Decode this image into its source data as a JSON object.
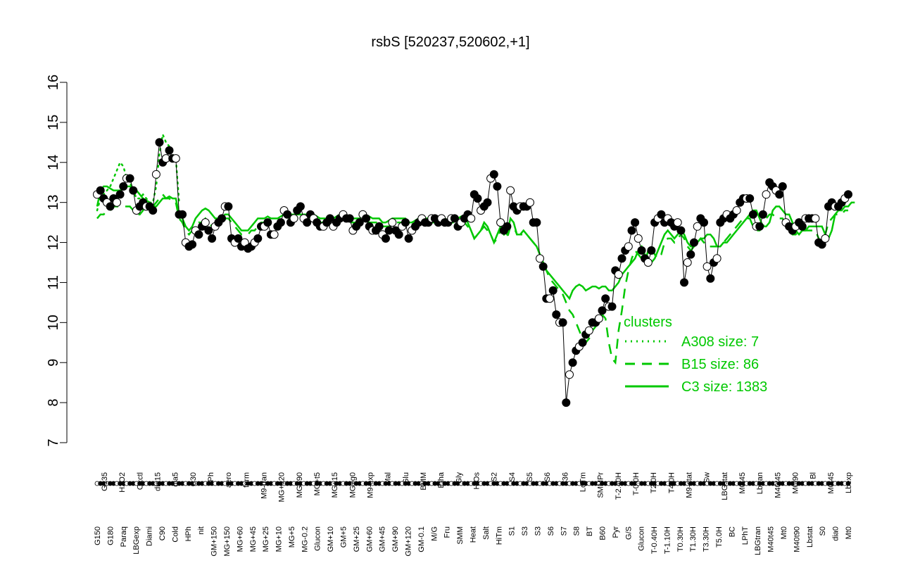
{
  "chart_data": {
    "type": "line",
    "title": "rsbS [520237,520602,+1]",
    "xlabel": "",
    "ylabel": "",
    "ylim": [
      7,
      16
    ],
    "yticks": [
      7,
      8,
      9,
      10,
      11,
      12,
      13,
      14,
      15,
      16
    ],
    "grid": false,
    "legend": {
      "title": "clusters",
      "placement": "right",
      "entries": [
        {
          "label": "A308 size: 7",
          "style": "dotted",
          "color": "#00c800"
        },
        {
          "label": "B15 size: 86",
          "style": "dashed",
          "color": "#00c800"
        },
        {
          "label": "C3 size: 1383",
          "style": "solid",
          "color": "#00c800"
        }
      ]
    },
    "x_labels_lower": [
      "G150",
      "G180",
      "Paraq",
      "LBGexp",
      "Diami",
      "C90",
      "Cold",
      "HPh",
      "nit",
      "GM+150",
      "MG+150",
      "MG+60",
      "MG+45",
      "MG+25",
      "MG+10",
      "MG+5",
      "MG-0.2",
      "Glucon",
      "GM+10",
      "GM+5",
      "GM+25",
      "GM+60",
      "GM+45",
      "GM+90",
      "GM+120",
      "GM-0.1",
      "M/G",
      "Fru",
      "SMM",
      "Heat",
      "Salt",
      "HiTm",
      "S1",
      "S3",
      "S3",
      "S6",
      "S7",
      "S8",
      "BT",
      "B60",
      "Pyr",
      "G/S",
      "Glucon",
      "T-0.40H",
      "T-1.10H",
      "T0.30H",
      "T1.30H",
      "T3.30H",
      "T5.0H",
      "BC",
      "LPhT",
      "LBGtran",
      "M40t45",
      "Mt0",
      "M40t90",
      "Lbstat",
      "S0",
      "dia0",
      "Mt0"
    ],
    "x_labels_upper": [
      "G135",
      "H2O2",
      "Oxctl",
      "dia15",
      "dia5",
      "C30",
      "LPh",
      "aero",
      "ferm",
      "M9-tran",
      "MG+120",
      "MG+90",
      "MG+t5",
      "MG+15",
      "MG+g0",
      "M9-exp",
      "Mal",
      "Glu",
      "BMM",
      "Etha",
      "Gly",
      "HiOs",
      "S2",
      "S4",
      "S5",
      "S6",
      "B36",
      "LoTm",
      "SMMPr",
      "T-2.40H",
      "T-0.0H",
      "T2.0H",
      "T4.0H",
      "M9-stat",
      "Sw",
      "LBGstat",
      "M0t45",
      "Lbtran",
      "M40t45",
      "M0t90",
      "Bl",
      "M0t45",
      "Lbexp"
    ],
    "series": [
      {
        "values": [
          13.2,
          13.3,
          13.1,
          13.0,
          12.9,
          13.1,
          13.0,
          13.2,
          13.4,
          13.6,
          13.6,
          13.3,
          12.8,
          12.9,
          13.0,
          12.9,
          12.9,
          12.8,
          13.7,
          14.5,
          14.0,
          14.1,
          14.3,
          14.1,
          14.1,
          12.7,
          12.7,
          12.0,
          11.9,
          11.95,
          12.3,
          12.2,
          12.4,
          12.5,
          12.3,
          12.1,
          12.4,
          12.5,
          12.6,
          12.9,
          12.9,
          12.1,
          12.0,
          12.1,
          11.9,
          12.0,
          11.85,
          11.9,
          12.0,
          12.1,
          12.4,
          12.4,
          12.5,
          12.2,
          12.2,
          12.4,
          12.5,
          12.8,
          12.7,
          12.5,
          12.6,
          12.8,
          12.9,
          12.6,
          12.5,
          12.7,
          12.6,
          12.5,
          12.4,
          12.4,
          12.5,
          12.6,
          12.4,
          12.5,
          12.6,
          12.7,
          12.6,
          12.6,
          12.3,
          12.4,
          12.5,
          12.7,
          12.6,
          12.4,
          12.3,
          12.3,
          12.4,
          12.2,
          12.1,
          12.3,
          12.5,
          12.3,
          12.2,
          12.4,
          12.5,
          12.1,
          12.3,
          12.4,
          12.5,
          12.6,
          12.5,
          12.5,
          12.6,
          12.6,
          12.5,
          12.6,
          12.5,
          12.5,
          12.6,
          12.6,
          12.4,
          12.5,
          12.6,
          12.7,
          12.6,
          13.2,
          13.1,
          12.8,
          12.9,
          13.0,
          13.6,
          13.7,
          13.4,
          12.5,
          12.3,
          12.4,
          13.3,
          12.9,
          12.8,
          12.9,
          12.9,
          12.9,
          13.0,
          12.5,
          12.5,
          11.6,
          11.4,
          10.6,
          10.6,
          10.8,
          10.2,
          10.0,
          10.0,
          8.0,
          8.7,
          9.0,
          9.3,
          9.4,
          9.5,
          9.7,
          9.8,
          10.0,
          10.0,
          10.1,
          10.3,
          10.6,
          10.4,
          10.4,
          11.3,
          11.2,
          11.6,
          11.8,
          11.9,
          12.3,
          12.5,
          12.1,
          11.8,
          11.6,
          11.5,
          11.8,
          12.5,
          12.6,
          12.7,
          12.5,
          12.6,
          12.5,
          12.4,
          12.5,
          12.3,
          11.0,
          11.5,
          11.7,
          12.0,
          12.4,
          12.6,
          12.5,
          11.4,
          11.1,
          11.5,
          11.6,
          12.5,
          12.6,
          12.7,
          12.6,
          12.7,
          12.8,
          13.0,
          13.1,
          13.1,
          13.1,
          12.7,
          12.4,
          12.4,
          12.7,
          13.2,
          13.5,
          13.4,
          13.3,
          13.2,
          13.4,
          12.5,
          12.4,
          12.3,
          12.4,
          12.5,
          12.4,
          12.6,
          12.6,
          12.6,
          12.6,
          12.0,
          11.95,
          12.1,
          12.9,
          13.0,
          12.9,
          12.9,
          13.0,
          13.1,
          13.2
        ]
      }
    ],
    "cluster_curves": [
      {
        "name": "C3 size: 1383",
        "style": "solid",
        "values": [
          12.9,
          13.3,
          13.4,
          13.4,
          13.35,
          13.3,
          13.3,
          13.3,
          13.35,
          13.4,
          13.4,
          13.35,
          13.3,
          13.2,
          13.1,
          13.05,
          13.0,
          12.9,
          12.9,
          13.0,
          13.1,
          13.1,
          13.15,
          13.1,
          13.1,
          12.7,
          12.6,
          12.4,
          12.3,
          12.4,
          12.6,
          12.7,
          12.8,
          12.85,
          12.8,
          12.7,
          12.6,
          12.6,
          12.6,
          12.7,
          12.7,
          12.6,
          12.5,
          12.4,
          12.3,
          12.3,
          12.3,
          12.4,
          12.5,
          12.6,
          12.6,
          12.6,
          12.65,
          12.6,
          12.6,
          12.6,
          12.65,
          12.7,
          12.7,
          12.7,
          12.7,
          12.7,
          12.7,
          12.7,
          12.7,
          12.7,
          12.7,
          12.65,
          12.6,
          12.6,
          12.6,
          12.6,
          12.6,
          12.65,
          12.7,
          12.7,
          12.7,
          12.6,
          12.6,
          12.6,
          12.6,
          12.65,
          12.65,
          12.65,
          12.6,
          12.6,
          12.6,
          12.5,
          12.5,
          12.55,
          12.6,
          12.6,
          12.6,
          12.6,
          12.6,
          12.5,
          12.5,
          12.55,
          12.6,
          12.6,
          12.6,
          12.6,
          12.6,
          12.65,
          12.6,
          12.6,
          12.6,
          12.55,
          12.6,
          12.6,
          12.6,
          12.65,
          12.6,
          12.5,
          12.3,
          12.1,
          12.2,
          12.3,
          12.5,
          12.4,
          12.2,
          12.0,
          12.2,
          12.4,
          12.3,
          12.2,
          12.6,
          12.5,
          12.2,
          12.2,
          12.3,
          12.2,
          12.1,
          12.0,
          11.9,
          11.7,
          11.5,
          11.3,
          11.2,
          11.1,
          11.0,
          10.9,
          10.8,
          10.7,
          10.6,
          10.8,
          10.9,
          10.95,
          10.9,
          10.8,
          10.85,
          10.9,
          10.9,
          10.85,
          10.9,
          10.9,
          10.8,
          10.8,
          10.9,
          11.0,
          11.2,
          11.3,
          11.4,
          11.5,
          11.6,
          11.8,
          11.9,
          11.7,
          11.5,
          11.5,
          11.6,
          11.8,
          12.0,
          12.2,
          12.3,
          12.2,
          12.1,
          12.2,
          12.3,
          12.2,
          12.0,
          11.9,
          11.9,
          12.0,
          12.1,
          12.1,
          12.2,
          12.2,
          12.1,
          11.9,
          11.9,
          12.0,
          12.0,
          12.1,
          12.2,
          12.3,
          12.4,
          12.5,
          12.6,
          12.7,
          12.8,
          12.8,
          12.6,
          12.4,
          12.4,
          12.5,
          12.8,
          12.9,
          12.9,
          12.8,
          12.7,
          12.7,
          12.5,
          12.3,
          12.2,
          12.3,
          12.3,
          12.4,
          12.4,
          12.4,
          12.4,
          12.4,
          12.2,
          12.1,
          12.3,
          12.7,
          12.8,
          12.8,
          12.9,
          12.9,
          13.0,
          13.0
        ]
      },
      {
        "name": "B15 size: 86",
        "style": "dashed",
        "values": [
          12.6,
          12.7,
          12.7,
          12.8,
          12.8,
          12.9,
          12.9,
          12.9,
          12.9,
          12.9,
          12.9,
          12.8,
          12.7,
          12.7,
          12.8,
          12.9,
          12.9,
          12.9,
          13.0,
          13.1,
          13.2,
          13.1,
          13.1,
          13.0,
          13.0,
          12.6,
          12.5,
          12.3,
          12.2,
          12.3,
          12.4,
          12.5,
          12.5,
          12.6,
          12.5,
          12.4,
          12.4,
          12.4,
          12.5,
          12.6,
          12.6,
          12.5,
          12.4,
          12.3,
          12.2,
          12.2,
          12.2,
          12.3,
          12.3,
          12.4,
          12.5,
          12.5,
          12.5,
          12.4,
          12.4,
          12.5,
          12.5,
          12.6,
          12.6,
          12.6,
          12.6,
          12.6,
          12.6,
          12.6,
          12.6,
          12.6,
          12.6,
          12.5,
          12.5,
          12.5,
          12.5,
          12.5,
          12.5,
          12.5,
          12.6,
          12.6,
          12.6,
          12.5,
          12.5,
          12.5,
          12.5,
          12.5,
          12.5,
          12.5,
          12.5,
          12.5,
          12.5,
          12.4,
          12.4,
          12.4,
          12.5,
          12.5,
          12.5,
          12.5,
          12.5,
          12.4,
          12.4,
          12.4,
          12.5,
          12.5,
          12.5,
          12.5,
          12.5,
          12.5,
          12.5,
          12.5,
          12.5,
          12.5,
          12.5,
          12.5,
          12.5,
          12.5,
          12.5,
          12.4,
          12.3,
          12.1,
          12.2,
          12.3,
          12.4,
          12.3,
          12.2,
          12.0,
          12.1,
          12.3,
          12.2,
          12.1,
          12.4,
          12.4,
          12.2,
          12.2,
          12.2,
          12.2,
          12.1,
          12.0,
          11.9,
          11.7,
          11.5,
          11.3,
          11.1,
          11.0,
          10.9,
          10.8,
          10.7,
          10.5,
          10.3,
          10.2,
          10.0,
          9.8,
          9.6,
          9.5,
          9.6,
          9.8,
          9.9,
          10.0,
          10.2,
          10.1,
          9.5,
          9.1,
          9.0,
          9.8,
          10.3,
          10.9,
          11.3,
          11.6,
          11.8,
          11.7,
          11.6,
          11.5,
          11.8,
          11.9,
          11.7,
          11.6,
          11.7,
          12.0,
          12.1,
          12.1,
          12.0,
          12.1,
          12.2,
          12.1,
          11.9,
          11.8,
          11.9,
          12.0,
          12.1,
          12.0,
          11.9,
          11.9,
          11.9,
          11.9,
          11.9,
          12.0,
          12.1,
          12.2,
          12.3,
          12.4,
          12.5,
          12.6,
          12.6,
          12.6,
          12.4,
          12.3,
          12.3,
          12.4,
          12.6,
          12.7,
          12.7,
          12.6,
          12.6,
          12.6,
          12.4,
          12.3,
          12.2,
          12.2,
          12.3,
          12.3,
          12.3,
          12.3,
          12.3,
          12.3,
          12.1,
          12.0,
          12.2,
          12.5,
          12.6,
          12.7,
          12.7,
          12.7,
          12.8,
          12.8
        ]
      },
      {
        "name": "A308 size: 7",
        "style": "dotted",
        "values": [
          12.8,
          13.1,
          13.2,
          13.3,
          13.4,
          13.6,
          13.8,
          14.0,
          13.9,
          13.6,
          13.5,
          13.3,
          13.1,
          13.1,
          13.2,
          13.1,
          13.0,
          13.0,
          13.4,
          14.2,
          14.7,
          14.5,
          14.4,
          14.2,
          14.1,
          13.0
        ]
      }
    ]
  }
}
